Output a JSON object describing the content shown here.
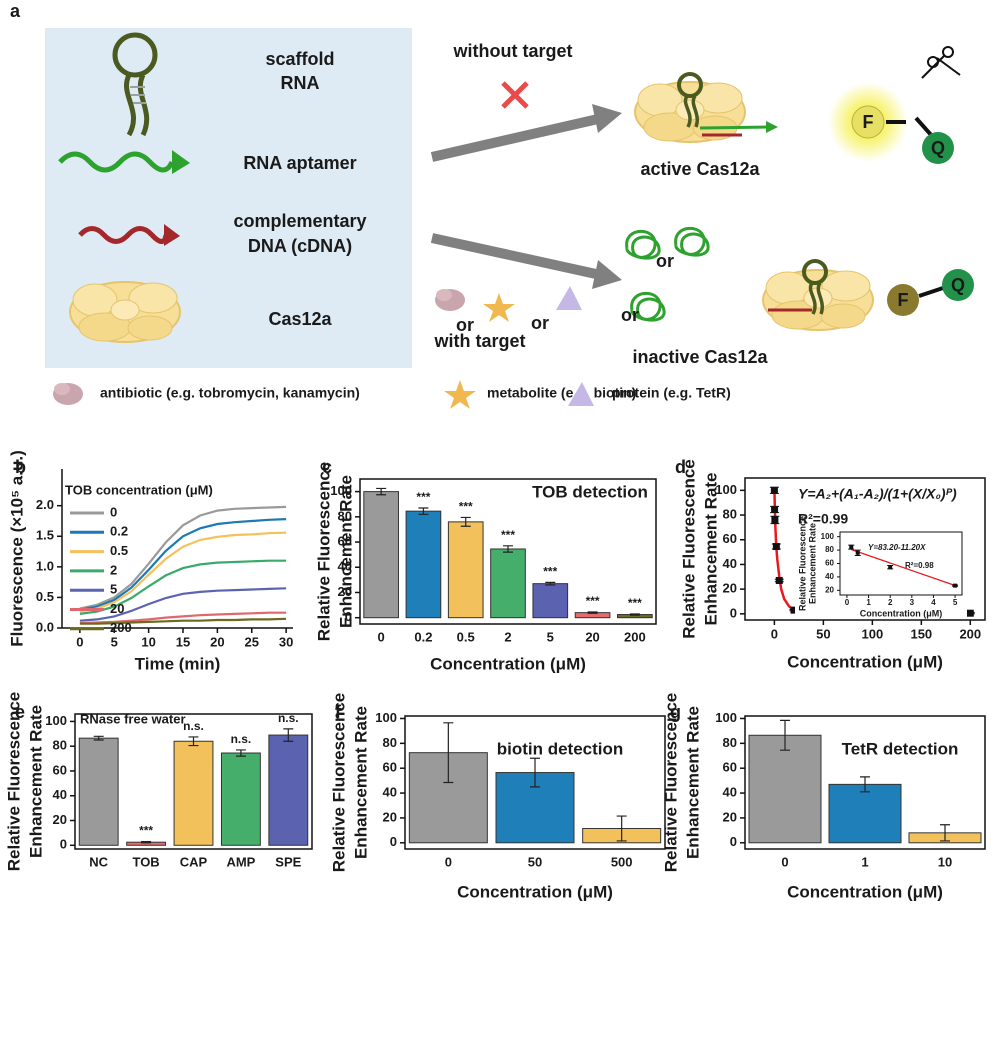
{
  "diagram": {
    "panel": "a",
    "component_labels": [
      "scaffold",
      "RNA",
      "RNA aptamer",
      "complementary",
      "DNA (cDNA)",
      "Cas12a"
    ],
    "without_target": "without target",
    "with_target": "with target",
    "active": "active Cas12a",
    "inactive": "inactive Cas12a",
    "fluorophore": [
      "F",
      "F"
    ],
    "quencher": [
      "Q",
      "Q"
    ],
    "or_labels": [
      "or",
      "or",
      "or",
      "or"
    ],
    "legend": [
      "antibiotic (e.g. tobromycin, kanamycin)",
      "metabolite (e.g. biotin)",
      "protein (e.g. TetR)"
    ]
  },
  "chart_data": [
    {
      "type": "line",
      "panel": "b",
      "xlabel": "Time (min)",
      "ylabel": [
        "Fluorescence (×10⁵ a.u.)"
      ],
      "legend_title": "TOB  concentration (μM)",
      "frame": false,
      "x": [
        0,
        2.5,
        5,
        7.5,
        10,
        12.5,
        15,
        17.5,
        20,
        22.5,
        25,
        27.5,
        30
      ],
      "xlim": [
        -2.6,
        31
      ],
      "xticks": [
        0,
        5,
        10,
        15,
        20,
        25,
        30
      ],
      "ylim": [
        0,
        2.6
      ],
      "yticks": [
        {
          "value": 0,
          "label": "0.0"
        },
        0.5,
        {
          "value": 1,
          "label": "1.0"
        },
        1.5,
        {
          "value": 2,
          "label": "2.0"
        }
      ],
      "series": [
        {
          "name": "0",
          "color": "#9a9a9a",
          "values": [
            0.32,
            0.38,
            0.5,
            0.72,
            1.05,
            1.4,
            1.68,
            1.84,
            1.92,
            1.95,
            1.96,
            1.97,
            1.98
          ]
        },
        {
          "name": "0.2",
          "color": "#1a7ab8",
          "values": [
            0.3,
            0.35,
            0.46,
            0.66,
            0.95,
            1.26,
            1.5,
            1.63,
            1.7,
            1.73,
            1.75,
            1.77,
            1.78
          ]
        },
        {
          "name": "0.5",
          "color": "#f5c15a",
          "values": [
            0.27,
            0.32,
            0.42,
            0.6,
            0.87,
            1.13,
            1.33,
            1.44,
            1.49,
            1.52,
            1.53,
            1.55,
            1.56
          ]
        },
        {
          "name": "2",
          "color": "#3aaa6a",
          "values": [
            0.23,
            0.27,
            0.35,
            0.49,
            0.68,
            0.86,
            0.98,
            1.04,
            1.07,
            1.08,
            1.09,
            1.1,
            1.1
          ]
        },
        {
          "name": "5",
          "color": "#5b64b0",
          "values": [
            0.12,
            0.14,
            0.19,
            0.28,
            0.39,
            0.49,
            0.56,
            0.59,
            0.61,
            0.62,
            0.63,
            0.64,
            0.65
          ]
        },
        {
          "name": "20",
          "color": "#e0676e",
          "values": [
            0.08,
            0.09,
            0.1,
            0.12,
            0.14,
            0.17,
            0.19,
            0.21,
            0.22,
            0.23,
            0.24,
            0.25,
            0.25
          ]
        },
        {
          "name": "200",
          "color": "#6b6a1f",
          "values": [
            0.07,
            0.07,
            0.08,
            0.09,
            0.1,
            0.11,
            0.12,
            0.12,
            0.13,
            0.13,
            0.14,
            0.14,
            0.15
          ]
        }
      ]
    },
    {
      "type": "bar",
      "panel": "c",
      "title": "TOB detection",
      "xlabel": "Concentration (μM)",
      "ylabel": [
        "Relative Fluorescence",
        "Enhancement Rate"
      ],
      "frame": true,
      "categories": [
        "0",
        "0.2",
        "0.5",
        "2",
        "5",
        "20",
        "200"
      ],
      "values": [
        100,
        84.5,
        76,
        54.5,
        27,
        4,
        2.5
      ],
      "errors": [
        2.5,
        2.5,
        3.5,
        2.5,
        1,
        0.5,
        0.5
      ],
      "annotations": [
        null,
        "***",
        "***",
        "***",
        "***",
        "***",
        "***"
      ],
      "colors": [
        "#9b9a9b",
        "#1f7fb8",
        "#f2c15c",
        "#45ae6b",
        "#5b63b1",
        "#e56b6f",
        "#6e6b25"
      ],
      "ylim": [
        -5,
        110
      ],
      "yticks": [
        0,
        20,
        40,
        60,
        80,
        100
      ]
    },
    {
      "type": "scatter",
      "panel": "d",
      "xlabel": "Concentration (μM)",
      "ylabel": [
        "Relative Fluorescence",
        "Enhancement Rate"
      ],
      "frame": true,
      "equation": "Y=A₂+(A₁-A₂)/(1+(X/X₀)ᴾ)",
      "r2": "R²=0.99",
      "x": [
        0,
        0.2,
        0.5,
        2,
        5,
        20,
        200
      ],
      "values": [
        100,
        84.5,
        76,
        54.5,
        27,
        3,
        0.5
      ],
      "errors": [
        2.5,
        2.5,
        3,
        2,
        1,
        0.5,
        0.5
      ],
      "color": "#111111",
      "fit": {
        "color": "#e8191d",
        "x": [
          0,
          1,
          2,
          3,
          5,
          7,
          10,
          15,
          20,
          30,
          50,
          100,
          150,
          200
        ],
        "values": [
          100,
          70,
          54,
          44,
          30,
          20,
          12,
          6,
          3,
          1.5,
          0.8,
          0.4,
          0.3,
          0.2
        ]
      },
      "xlim": [
        -30,
        215
      ],
      "xticks": [
        0,
        50,
        100,
        150,
        200
      ],
      "ylim": [
        -5,
        110
      ],
      "yticks": [
        0,
        20,
        40,
        60,
        80,
        100
      ],
      "inset": {
        "type": "scatter",
        "xlabel": "Concentration (μM)",
        "ylabel": [
          "Relative Fluorescence",
          "Enhancement Rate"
        ],
        "frame": true,
        "equation": "Y=83.20-11.20X",
        "r2": "R²=0.98",
        "x": [
          0.2,
          0.5,
          2,
          5
        ],
        "values": [
          84.5,
          76,
          54.5,
          27
        ],
        "errors": [
          3,
          4,
          2.5,
          1
        ],
        "color": "#111111",
        "fit": {
          "color": "#e8191d",
          "x": [
            0.2,
            5
          ],
          "values": [
            80.96,
            27.2
          ]
        },
        "xlim": [
          -0.32,
          5.32
        ],
        "xticks": [
          0,
          1,
          2,
          3,
          4,
          5
        ],
        "ylim": [
          13,
          107
        ],
        "yticks": [
          20,
          40,
          60,
          80,
          100
        ]
      }
    },
    {
      "type": "bar",
      "panel": "e",
      "title": "RNase free water",
      "ylabel": [
        "Relative Fluorescence",
        "Enhancement Rate"
      ],
      "frame": true,
      "categories": [
        "NC",
        "TOB",
        "CAP",
        "AMP",
        "SPE"
      ],
      "values": [
        86.5,
        2.5,
        84,
        74.5,
        89
      ],
      "errors": [
        1.5,
        0.5,
        3.5,
        2.5,
        5
      ],
      "annotations": [
        null,
        "***",
        "n.s.",
        "n.s.",
        "n.s."
      ],
      "colors": [
        "#9b9a9b",
        "#e56b6f",
        "#f2c15c",
        "#45ae6b",
        "#5b63b1"
      ],
      "ylim": [
        -3,
        106
      ],
      "yticks": [
        0,
        20,
        40,
        60,
        80,
        100
      ]
    },
    {
      "type": "bar",
      "panel": "f",
      "title": "biotin detection",
      "xlabel": "Concentration (μM)",
      "ylabel": [
        "Relative Fluorescence",
        "Enhancement Rate"
      ],
      "frame": true,
      "categories": [
        "0",
        "50",
        "500"
      ],
      "values": [
        72.5,
        56.5,
        11.5
      ],
      "errors": [
        24,
        11.5,
        10
      ],
      "colors": [
        "#9b9a9b",
        "#1f7fb8",
        "#f2c15c"
      ],
      "ylim": [
        -5,
        102
      ],
      "yticks": [
        0,
        20,
        40,
        60,
        80,
        100
      ]
    },
    {
      "type": "bar",
      "panel": "g",
      "title": "TetR detection",
      "xlabel": "Concentration (μM)",
      "ylabel": [
        "Relative Fluorescence",
        "Enhancement Rate"
      ],
      "frame": true,
      "categories": [
        "0",
        "1",
        "10"
      ],
      "values": [
        86.5,
        47,
        8
      ],
      "errors": [
        12,
        6,
        6.5
      ],
      "colors": [
        "#9b9a9b",
        "#1f7fb8",
        "#f2c15c"
      ],
      "ylim": [
        -5,
        102
      ],
      "yticks": [
        0,
        20,
        40,
        60,
        80,
        100
      ]
    }
  ]
}
